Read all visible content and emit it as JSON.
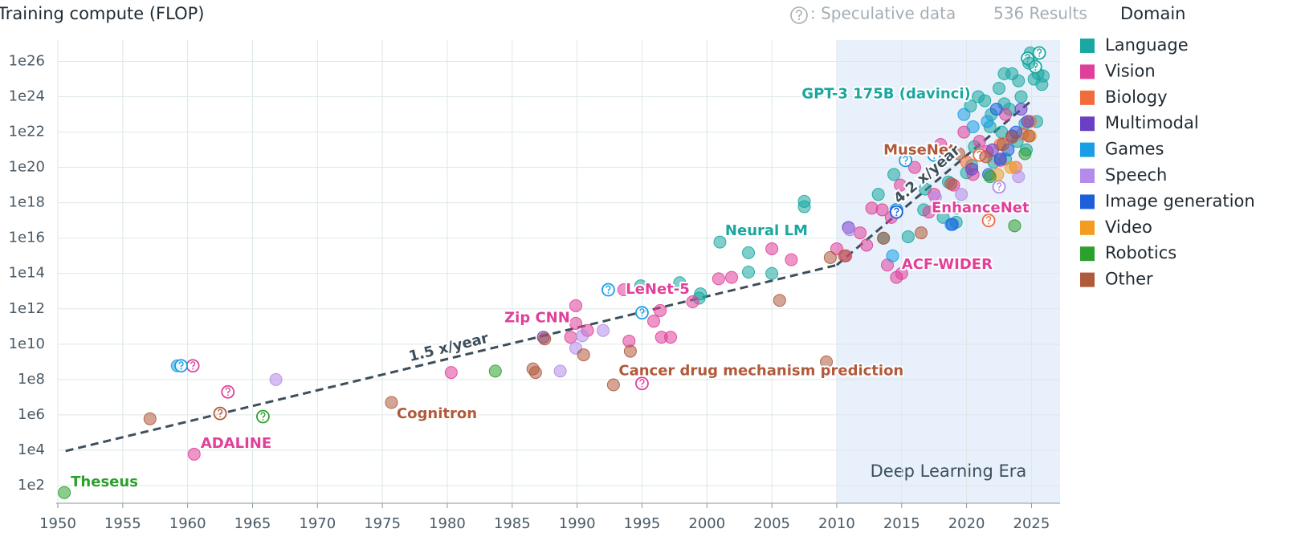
{
  "chart_data": {
    "type": "scatter",
    "ylabel": "Training compute (FLOP)",
    "speculative_note": ": Speculative data",
    "results": "536 Results",
    "legend_title": "Domain",
    "log_y": true,
    "grid": true,
    "legend": "right",
    "xlim": [
      1950,
      2027.2
    ],
    "xticks": [
      1950,
      1955,
      1960,
      1965,
      1970,
      1975,
      1980,
      1985,
      1990,
      1995,
      2000,
      2005,
      2010,
      2015,
      2020,
      2025
    ],
    "ylim": [
      10,
      1.6e+27
    ],
    "yticks": [
      {
        "value": 100.0,
        "label": "1e2"
      },
      {
        "value": 10000.0,
        "label": "1e4"
      },
      {
        "value": 1000000.0,
        "label": "1e6"
      },
      {
        "value": 100000000.0,
        "label": "1e8"
      },
      {
        "value": 10000000000.0,
        "label": "1e10"
      },
      {
        "value": 1000000000000.0,
        "label": "1e12"
      },
      {
        "value": 100000000000000.0,
        "label": "1e14"
      },
      {
        "value": 1e+16,
        "label": "1e16"
      },
      {
        "value": 1e+18,
        "label": "1e18"
      },
      {
        "value": 1e+20,
        "label": "1e20"
      },
      {
        "value": 1e+22,
        "label": "1e22"
      },
      {
        "value": 1e+24,
        "label": "1e24"
      },
      {
        "value": 1e+26,
        "label": "1e26"
      }
    ],
    "region": {
      "label": "Deep Learning Era",
      "start": 2010,
      "color": "#e8f0fb"
    },
    "trends": [
      {
        "label": "1.5 x/year",
        "x": [
          1950.6,
          2010
        ],
        "values": [
          9000.0,
          300000000000000.0
        ],
        "color": "#3d4f5c"
      },
      {
        "label": "4.2 x/year",
        "x": [
          2010,
          2025
        ],
        "values": [
          300000000000000.0,
          6e+23
        ],
        "color": "#3d4f5c"
      }
    ],
    "series": [
      {
        "name": "Language",
        "color": "#1aa7a1",
        "x": [
          1994.9,
          1997.9,
          1999.4,
          1999.5,
          2001.0,
          2003.2,
          2003.2,
          2005.0,
          2007.5,
          2007.5,
          2013.2,
          2014.4,
          2013.6,
          2015.5,
          2016.8,
          2018.6,
          2019.2,
          2020.4,
          2021.8,
          2022.5,
          2022.9,
          2024.9,
          2025.5,
          2025.8,
          2025.2,
          2024.0,
          2023.3,
          2024.5,
          2025.4,
          2022.7,
          2021.4,
          2021.9,
          2020.6,
          2020.9,
          2023.5,
          2024.2,
          2024.6,
          2023.0,
          2022.1,
          2020.0,
          2018.2,
          2019.2,
          2016.7,
          2023.9,
          2025.0,
          2024.7,
          2025.6,
          2025.3,
          2022.9,
          2024.8,
          2025.9,
          2020.3
        ],
        "values": [
          20000000000000.0,
          30000000000000.0,
          4000000000000.0,
          7000000000000.0,
          6000000000000000.0,
          1500000000000000.0,
          120000000000000.0,
          100000000000000.0,
          1.2e+18,
          6e+17,
          3e+18,
          4e+19,
          1e+16,
          1.2e+16,
          6e+18,
          1.5e+19,
          5e+17,
          1.3e+20,
          2e+22,
          3e+24,
          2e+25,
          3e+26,
          2e+25,
          5e+24,
          1e+25,
          8e+24,
          2e+23,
          3e+22,
          4e+22,
          1e+22,
          6e+23,
          1e+23,
          1.5e+21,
          1e+24,
          2e+25,
          1e+24,
          1e+21,
          3e+20,
          2e+20,
          5e+19,
          1.5e+17,
          8e+16,
          4e+17,
          3e+21,
          1e+26,
          1.5e+26,
          3e+26,
          5e+25,
          4e+23,
          8e+25,
          1.5e+25,
          3e+23
        ],
        "speculative": [
          false,
          false,
          false,
          false,
          false,
          false,
          false,
          false,
          false,
          false,
          false,
          false,
          false,
          false,
          false,
          false,
          false,
          false,
          false,
          false,
          false,
          false,
          false,
          false,
          false,
          false,
          false,
          false,
          false,
          false,
          false,
          false,
          false,
          false,
          false,
          false,
          false,
          false,
          false,
          false,
          false,
          false,
          false,
          false,
          false,
          true,
          true,
          true,
          false,
          false,
          false,
          false
        ]
      },
      {
        "name": "Vision",
        "color": "#e0409a",
        "x": [
          1960.5,
          1963.1,
          1960.4,
          1980.3,
          1989.9,
          1989.9,
          1989.5,
          1990.8,
          1994.0,
          1993.6,
          1996.4,
          1995.9,
          1996.5,
          1997.2,
          1998.9,
          2000.9,
          2001.9,
          2005.0,
          2006.5,
          1995.0,
          2010.0,
          2010.7,
          2011.8,
          2012.7,
          2014.2,
          2014.6,
          2013.9,
          2014.9,
          2016.0,
          2018.0,
          2019.8,
          2021.6,
          2022.6,
          2017.1,
          2015.0,
          2012.3,
          2013.5,
          2017.5,
          2019.0,
          2021.0,
          2023.0,
          2020.5
        ],
        "values": [
          6000.0,
          20000000.0,
          600000000.0,
          250000000.0,
          1500000000000.0,
          150000000000.0,
          25000000000.0,
          60000000000.0,
          15000000000.0,
          12000000000000.0,
          800000000000.0,
          200000000000.0,
          25000000000.0,
          25000000000.0,
          2500000000000.0,
          50000000000000.0,
          60000000000000.0,
          2500000000000000.0,
          600000000000000.0,
          60000000.0,
          2500000000000000.0,
          1000000000000000.0,
          2e+16,
          5e+17,
          1.5e+17,
          60000000000000.0,
          300000000000000.0,
          1e+19,
          1e+20,
          2e+21,
          1e+22,
          8e+20,
          2.5e+20,
          3e+17,
          100000000000000.0,
          4000000000000000.0,
          4e+17,
          3e+18,
          1e+19,
          3e+21,
          1e+23,
          4e+19
        ],
        "speculative": [
          false,
          true,
          true,
          false,
          false,
          false,
          false,
          false,
          false,
          false,
          false,
          false,
          false,
          false,
          false,
          false,
          false,
          false,
          false,
          true,
          false,
          false,
          false,
          false,
          false,
          false,
          false,
          false,
          false,
          false,
          false,
          false,
          false,
          false,
          false,
          false,
          false,
          false,
          false,
          false,
          false,
          false
        ]
      },
      {
        "name": "Biology",
        "color": "#f26b3a",
        "x": [
          2021.7,
          2024.9,
          2020.0,
          2022.6,
          2023.8,
          2021.0,
          2024.3
        ],
        "values": [
          1e+17,
          4e+22,
          2e+20,
          2e+21,
          1e+20,
          5e+20,
          8e+21
        ],
        "speculative": [
          true,
          false,
          false,
          false,
          false,
          true,
          false
        ]
      },
      {
        "name": "Multimodal",
        "color": "#6b3fc4",
        "x": [
          1987.4,
          2010.9,
          2020.4,
          2023.5,
          2024.7,
          2022.0,
          2024.2
        ],
        "values": [
          25000000000.0,
          4e+16,
          8e+19,
          6e+21,
          4e+22,
          1e+21,
          2e+23
        ],
        "speculative": [
          false,
          false,
          false,
          false,
          false,
          false,
          false
        ]
      },
      {
        "name": "Games",
        "color": "#1a9ee6",
        "x": [
          1959.2,
          1959.5,
          1995.0,
          1992.4,
          2014.3,
          2014.6,
          2015.3,
          2018.8,
          2021.6,
          2017.5,
          2019.8,
          2020.5
        ],
        "values": [
          600000000.0,
          600000000.0,
          600000000000.0,
          12000000000000.0,
          1000000000000000.0,
          4e+17,
          2.5e+20,
          6e+16,
          4e+22,
          5e+20,
          1e+23,
          2e+22
        ],
        "speculative": [
          false,
          true,
          true,
          true,
          false,
          true,
          true,
          false,
          false,
          true,
          false,
          false
        ]
      },
      {
        "name": "Speech",
        "color": "#b48be8",
        "x": [
          1966.8,
          1988.7,
          1990.4,
          1992.0,
          1989.9,
          2011.0,
          2024.0,
          2022.5,
          2019.6,
          2017.6
        ],
        "values": [
          100000000.0,
          300000000.0,
          30000000000.0,
          60000000000.0,
          6000000000.0,
          3e+16,
          3e+19,
          8e+18,
          3e+18,
          2e+18
        ],
        "speculative": [
          false,
          false,
          false,
          false,
          false,
          false,
          false,
          true,
          false,
          false
        ]
      },
      {
        "name": "Image generation",
        "color": "#1d5ed9",
        "x": [
          2014.6,
          2018.9,
          2022.6,
          2023.2,
          2021.7,
          2023.8,
          2022.3
        ],
        "values": [
          3e+17,
          6e+16,
          3e+20,
          1e+21,
          4e+19,
          1e+22,
          2e+23
        ],
        "speculative": [
          true,
          false,
          false,
          false,
          false,
          false,
          false
        ]
      },
      {
        "name": "Video",
        "color": "#f39c1f",
        "x": [
          2022.4,
          2024.9,
          2023.4
        ],
        "values": [
          4e+19,
          6e+21,
          1e+20
        ],
        "speculative": [
          false,
          false,
          false
        ]
      },
      {
        "name": "Robotics",
        "color": "#2ca02c",
        "x": [
          1950.5,
          1983.7,
          1965.8,
          2023.7,
          2024.5,
          2021.8
        ],
        "values": [
          40,
          300000000.0,
          800000.0,
          5e+16,
          6e+20,
          3e+19
        ],
        "speculative": [
          false,
          false,
          true,
          false,
          false,
          false
        ]
      },
      {
        "name": "Other",
        "color": "#b05a3c",
        "x": [
          1957.1,
          1962.5,
          1975.7,
          1986.6,
          1986.8,
          1987.5,
          1990.5,
          1994.1,
          1992.8,
          2005.6,
          2009.5,
          2009.2,
          2010.6,
          2013.6,
          2019.4,
          2016.5,
          2018.8,
          2021.5,
          2023.5,
          2024.8,
          2022.8
        ],
        "values": [
          600000.0,
          1200000.0,
          5000000.0,
          400000000.0,
          250000000.0,
          20000000000.0,
          2500000000.0,
          4000000000.0,
          50000000.0,
          3000000000000.0,
          800000000000000.0,
          1000000000.0,
          1000000000000000.0,
          1e+16,
          6e+20,
          2e+16,
          1.2e+19,
          4e+20,
          5e+21,
          6e+21,
          2e+21
        ],
        "speculative": [
          false,
          true,
          false,
          false,
          false,
          false,
          false,
          false,
          false,
          false,
          false,
          false,
          false,
          false,
          false,
          false,
          false,
          false,
          false,
          false,
          false
        ]
      }
    ],
    "annotations": [
      {
        "text": "Theseus",
        "x": 1951.0,
        "y": 150,
        "color": "#2ca02c"
      },
      {
        "text": "ADALINE",
        "x": 1961.0,
        "y": 23000.0,
        "color": "#e0409a"
      },
      {
        "text": "Cognitron",
        "x": 1976.1,
        "y": 1100000.0,
        "color": "#b05a3c"
      },
      {
        "text": "Zip CNN",
        "x": 1984.4,
        "y": 300000000000.0,
        "color": "#e0409a"
      },
      {
        "text": "LeNet-5",
        "x": 1993.75,
        "y": 12000000000000.0,
        "color": "#e0409a"
      },
      {
        "text": "Cancer drug mechanism prediction",
        "x": 1993.2,
        "y": 300000000.0,
        "color": "#b05a3c"
      },
      {
        "text": "Neural LM",
        "x": 2001.4,
        "y": 2.5e+16,
        "color": "#1aa7a1"
      },
      {
        "text": "ACF-WIDER",
        "x": 2015.0,
        "y": 300000000000000.0,
        "color": "#e0409a"
      },
      {
        "text": "EnhanceNet",
        "x": 2017.3,
        "y": 5e+17,
        "color": "#e0409a"
      },
      {
        "text": "MuseNet",
        "x": 2013.6,
        "y": 9e+20,
        "color": "#b05a3c"
      },
      {
        "text": "GPT-3 175B (davinci)",
        "x": 2007.3,
        "y": 1.4e+24,
        "color": "#1aa7a1"
      }
    ]
  }
}
